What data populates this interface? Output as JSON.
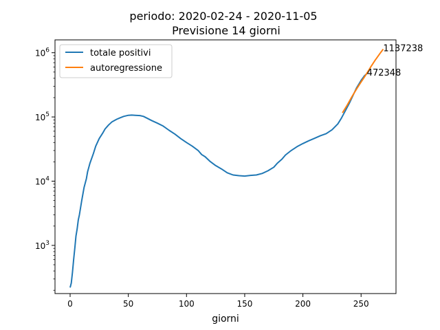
{
  "chart_data": {
    "type": "line",
    "title_lines": [
      "periodo: 2020-02-24 - 2020-11-05",
      "Previsione 14 giorni"
    ],
    "xlabel": "giorni",
    "ylabel": "",
    "xlim": [
      -13,
      280
    ],
    "ylim_log10": [
      2.25,
      6.2
    ],
    "y_scale": "log",
    "x_ticks": [
      0,
      50,
      100,
      150,
      200,
      250
    ],
    "y_ticks": [
      {
        "value": 1000,
        "base": "10",
        "exp": "3"
      },
      {
        "value": 10000,
        "base": "10",
        "exp": "4"
      },
      {
        "value": 100000,
        "base": "10",
        "exp": "5"
      },
      {
        "value": 1000000,
        "base": "10",
        "exp": "6"
      }
    ],
    "legend_position": "top-left",
    "series": [
      {
        "name": "totale positivi",
        "color": "#1f77b4",
        "x": [
          0,
          1,
          2,
          3,
          4,
          5,
          6,
          7,
          8,
          10,
          12,
          14,
          15,
          17,
          20,
          22,
          25,
          28,
          30,
          33,
          36,
          40,
          43,
          46,
          50,
          53,
          56,
          60,
          63,
          66,
          70,
          75,
          80,
          85,
          90,
          95,
          100,
          105,
          110,
          113,
          116,
          120,
          125,
          130,
          135,
          140,
          145,
          150,
          155,
          160,
          165,
          170,
          175,
          178,
          182,
          185,
          190,
          195,
          200,
          205,
          210,
          215,
          220,
          225,
          230,
          233,
          236,
          240,
          243,
          246,
          250,
          253,
          255
        ],
        "y": [
          221,
          260,
          380,
          600,
          900,
          1400,
          1800,
          2500,
          3000,
          5000,
          8000,
          11000,
          14000,
          19000,
          27000,
          35000,
          46000,
          56000,
          65000,
          75000,
          84000,
          92000,
          97000,
          102000,
          106000,
          107000,
          106000,
          105000,
          102000,
          96000,
          88000,
          80000,
          72000,
          62000,
          54000,
          46000,
          40000,
          35000,
          30000,
          26000,
          24000,
          20500,
          17500,
          15500,
          13500,
          12500,
          12200,
          12000,
          12300,
          12500,
          13200,
          14500,
          16500,
          19000,
          22000,
          25500,
          30000,
          34500,
          38500,
          42500,
          46500,
          51000,
          55000,
          63000,
          78000,
          95000,
          120000,
          165000,
          215000,
          280000,
          370000,
          440000,
          472348
        ]
      },
      {
        "name": "autoregressione",
        "color": "#ff7f0e",
        "x": [
          234,
          238,
          242,
          246,
          250,
          254,
          258,
          262,
          266,
          269
        ],
        "y": [
          116000,
          152000,
          205000,
          270000,
          350000,
          450000,
          590000,
          760000,
          960000,
          1137238
        ]
      }
    ],
    "annotations": [
      {
        "text": "1137238",
        "x": 269,
        "y": 1137238
      },
      {
        "text": "472348",
        "x": 255,
        "y": 472348
      }
    ]
  }
}
